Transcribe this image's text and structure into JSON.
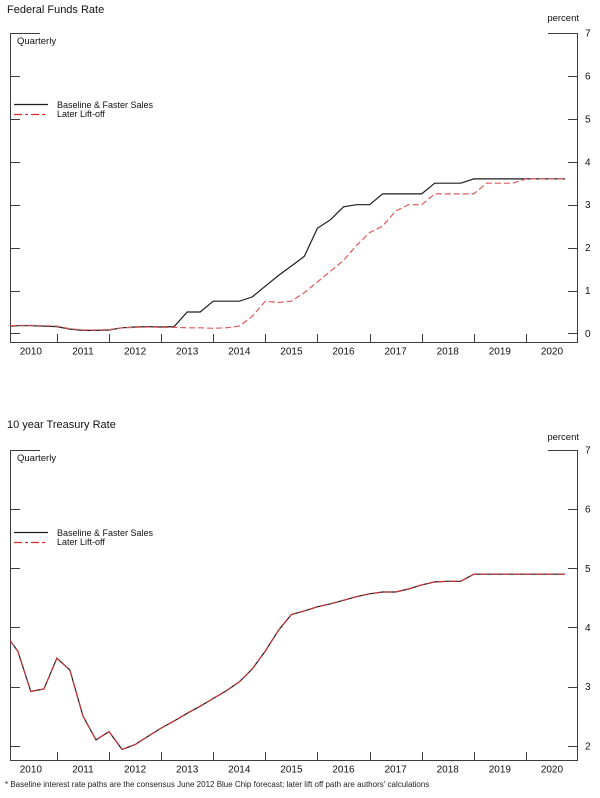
{
  "page": {
    "footnote": "* Baseline interest rate paths are the consensus June 2012 Blue Chip forecast; later lift off path are authors' calculations"
  },
  "chart_data": [
    {
      "id": "ffr",
      "type": "line",
      "title": "Federal Funds Rate",
      "unit_label": "percent",
      "freq_label": "Quarterly",
      "grid": false,
      "legend_position": "inside-top-left",
      "x_start": 2009.75,
      "x_step": 0.25,
      "xlim": [
        2010.1,
        2021.0
      ],
      "ylim": [
        -0.2,
        7
      ],
      "yticks": [
        0,
        1,
        2,
        3,
        4,
        5,
        6,
        7
      ],
      "xtick_years": [
        2011,
        2012,
        2013,
        2014,
        2015,
        2016,
        2017,
        2018,
        2019,
        2020
      ],
      "year_labels": [
        "2010",
        "2011",
        "2012",
        "2013",
        "2014",
        "2015",
        "2016",
        "2017",
        "2018",
        "2019",
        "2020"
      ],
      "series": [
        {
          "name": "Baseline & Faster Sales",
          "color": "#1c1c1c",
          "legend_color": "#1c1c1c",
          "dash": "",
          "legend_dash": "",
          "values": [
            0.13,
            0.16,
            0.18,
            0.18,
            0.17,
            0.16,
            0.1,
            0.07,
            0.07,
            0.08,
            0.13,
            0.15,
            0.16,
            0.15,
            0.16,
            0.5,
            0.5,
            0.75,
            0.75,
            0.75,
            0.85,
            1.1,
            1.35,
            1.57,
            1.8,
            2.45,
            2.65,
            2.95,
            3.0,
            3.0,
            3.25,
            3.25,
            3.25,
            3.25,
            3.5,
            3.5,
            3.5,
            3.6,
            3.6,
            3.6,
            3.6,
            3.6,
            3.6,
            3.6,
            3.6
          ]
        },
        {
          "name": "Later Lift-off",
          "color": "#e05a5a",
          "legend_color": "#d42a2a",
          "dash": "6 3",
          "legend_dash": "8 3 3 3",
          "values": [
            0.13,
            0.17,
            0.19,
            0.19,
            0.18,
            0.17,
            0.11,
            0.08,
            0.08,
            0.09,
            0.13,
            0.14,
            0.15,
            0.14,
            0.14,
            0.13,
            0.13,
            0.12,
            0.13,
            0.17,
            0.4,
            0.75,
            0.72,
            0.75,
            0.95,
            1.2,
            1.45,
            1.7,
            2.05,
            2.35,
            2.5,
            2.85,
            3.0,
            3.0,
            3.25,
            3.25,
            3.25,
            3.25,
            3.5,
            3.5,
            3.5,
            3.6,
            3.6,
            3.6,
            3.6
          ]
        }
      ]
    },
    {
      "id": "treasury",
      "type": "line",
      "title": "10 year Treasury Rate",
      "unit_label": "percent",
      "freq_label": "Quarterly",
      "grid": false,
      "legend_position": "inside-top-left",
      "x_start": 2009.75,
      "x_step": 0.25,
      "xlim": [
        2010.1,
        2021.0
      ],
      "ylim": [
        1.76,
        7
      ],
      "yticks": [
        2,
        3,
        4,
        5,
        6,
        7
      ],
      "xtick_years": [
        2011,
        2012,
        2013,
        2014,
        2015,
        2016,
        2017,
        2018,
        2019,
        2020
      ],
      "year_labels": [
        "2010",
        "2011",
        "2012",
        "2013",
        "2014",
        "2015",
        "2016",
        "2017",
        "2018",
        "2019",
        "2020"
      ],
      "series": [
        {
          "name": "Baseline & Faster Sales",
          "color": "#1c1c1c",
          "legend_color": "#1c1c1c",
          "dash": "",
          "legend_dash": "",
          "values": [
            4.0,
            3.9,
            3.6,
            2.92,
            2.96,
            3.48,
            3.28,
            2.5,
            2.1,
            2.24,
            1.94,
            2.02,
            2.16,
            2.3,
            2.42,
            2.55,
            2.67,
            2.8,
            2.93,
            3.08,
            3.3,
            3.6,
            3.95,
            4.22,
            4.28,
            4.35,
            4.4,
            4.46,
            4.52,
            4.57,
            4.6,
            4.6,
            4.65,
            4.72,
            4.77,
            4.78,
            4.78,
            4.9,
            4.9,
            4.9,
            4.9,
            4.9,
            4.9,
            4.9,
            4.9
          ]
        },
        {
          "name": "Later Lift-off",
          "color": "#c73333",
          "legend_color": "#d42a2a",
          "dash": "8 3",
          "legend_dash": "8 3 3 3",
          "values": [
            4.0,
            3.9,
            3.6,
            2.92,
            2.96,
            3.48,
            3.28,
            2.5,
            2.1,
            2.24,
            1.94,
            2.02,
            2.16,
            2.3,
            2.42,
            2.55,
            2.67,
            2.8,
            2.93,
            3.08,
            3.3,
            3.6,
            3.95,
            4.22,
            4.28,
            4.35,
            4.4,
            4.46,
            4.52,
            4.57,
            4.6,
            4.6,
            4.65,
            4.72,
            4.77,
            4.78,
            4.78,
            4.9,
            4.9,
            4.9,
            4.9,
            4.9,
            4.9,
            4.9,
            4.9
          ]
        }
      ]
    }
  ]
}
